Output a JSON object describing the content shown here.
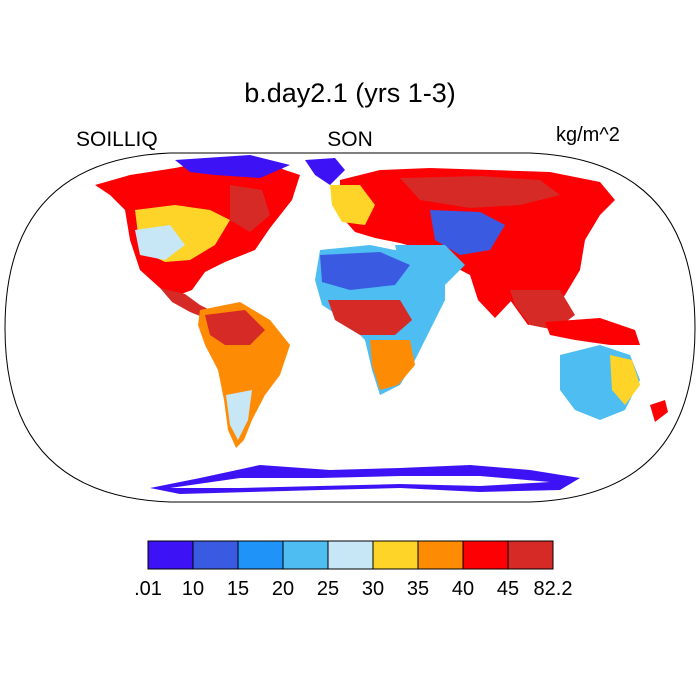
{
  "header": {
    "title": "b.day2.1 (yrs 1-3)",
    "left_label": "SOILLIQ",
    "center_label": "SON",
    "right_label": "kg/m^2"
  },
  "legend": {
    "colors": [
      "#3d12f5",
      "#3a5be1",
      "#1f93f7",
      "#4dbdf2",
      "#c7e6f6",
      "#fdd427",
      "#fe8b04",
      "#fd0004",
      "#d62a26"
    ],
    "tick_labels": [
      ".01",
      "10",
      "15",
      "20",
      "25",
      "30",
      "35",
      "40",
      "45",
      "82.2"
    ]
  },
  "map": {
    "land_colors": {
      "polar": "#3d12f5",
      "dry": "#3a5be1",
      "semi_dry": "#4dbdf2",
      "light": "#c7e6f6",
      "mid": "#fdd427",
      "orange": "#fe8b04",
      "wet": "#fd0004",
      "very_wet": "#d62a26"
    }
  }
}
